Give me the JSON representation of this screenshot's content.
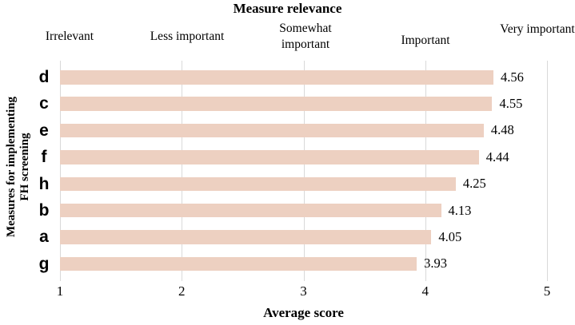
{
  "chart_data": {
    "type": "bar",
    "orientation": "horizontal",
    "title": "Measure relevance",
    "xlabel": "Average score",
    "ylabel": "Measures for implementing FH screening",
    "ylabel_lines": [
      "Measures for implementing",
      "FH screening"
    ],
    "relevance_scale_labels": [
      "Irrelevant",
      "Less important",
      "Somewhat important",
      "Important",
      "Very important"
    ],
    "categories": [
      "d",
      "c",
      "e",
      "f",
      "h",
      "b",
      "a",
      "g"
    ],
    "values": [
      4.56,
      4.55,
      4.48,
      4.44,
      4.25,
      4.13,
      4.05,
      3.93
    ],
    "value_labels": [
      "4.56",
      "4.55",
      "4.48",
      "4.44",
      "4.25",
      "4.13",
      "4.05",
      "3.93"
    ],
    "xlim": [
      1,
      5
    ],
    "xticks": [
      1,
      2,
      3,
      4,
      5
    ],
    "grid": true,
    "legend": false,
    "bar_color": "#edd0c1",
    "gridline_color": "#d9d9d9",
    "text_color": "#000000"
  }
}
